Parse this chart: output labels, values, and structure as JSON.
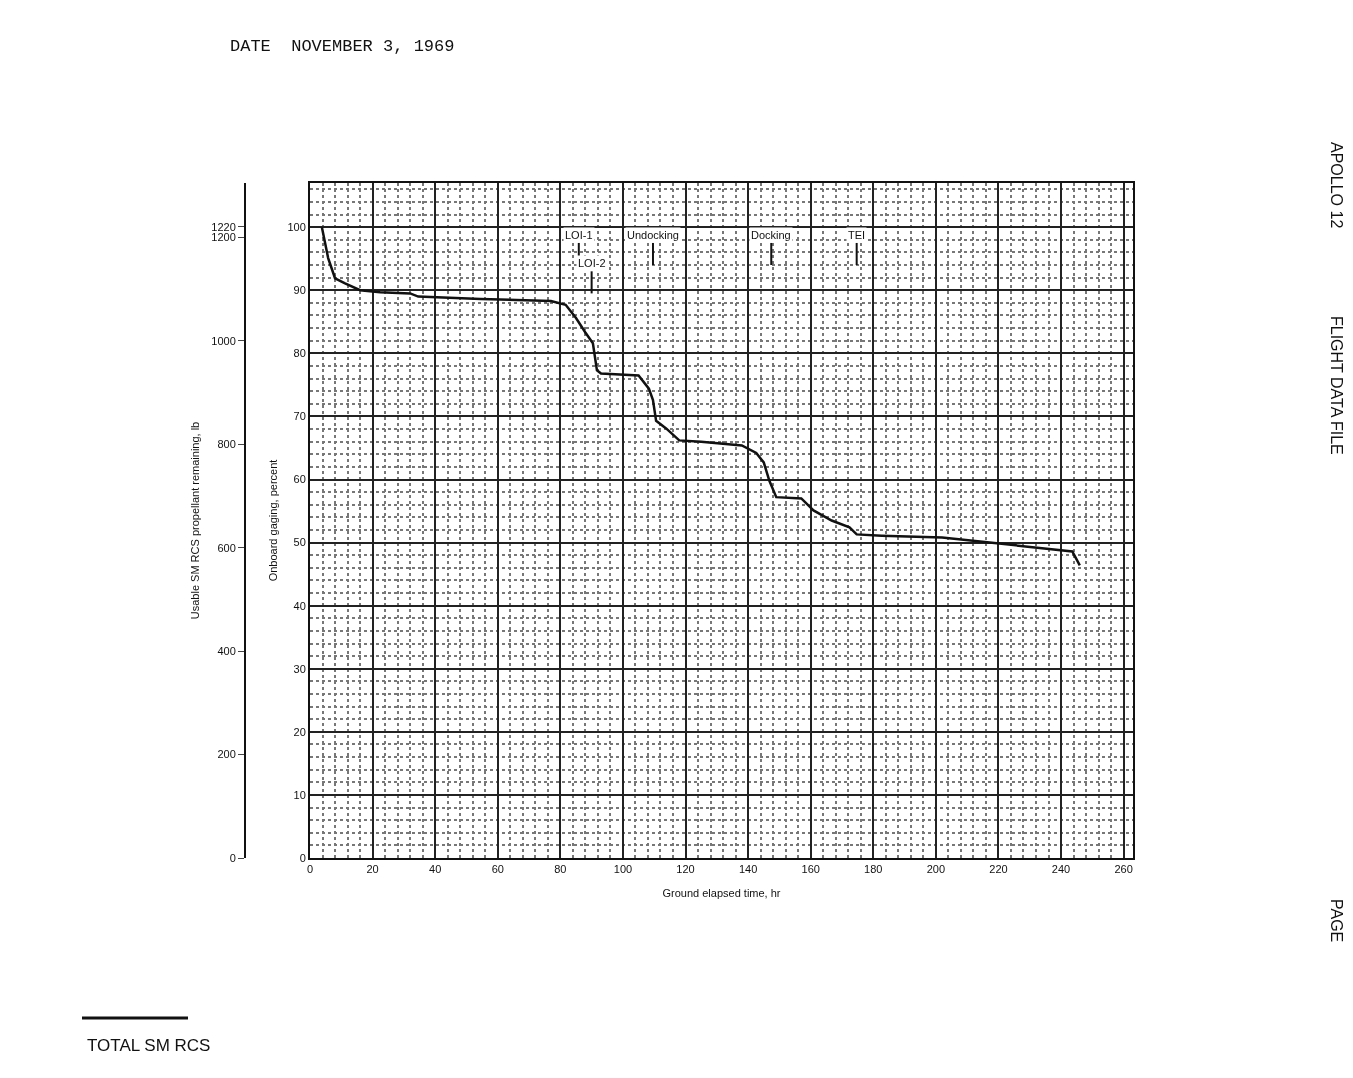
{
  "chart_data": {
    "type": "line",
    "title": "DATE  NOVEMBER 3, 1969",
    "xlabel": "Ground elapsed time, hr",
    "ylabel": "Onboard gaging, percent",
    "y2label": "Usable SM RCS propellant remaining, lb",
    "xlim": [
      0,
      263
    ],
    "xticks": [
      0,
      20,
      40,
      60,
      80,
      100,
      120,
      140,
      160,
      180,
      200,
      220,
      240,
      260
    ],
    "ylim": [
      0,
      107
    ],
    "yticks": [
      0,
      10,
      20,
      30,
      40,
      50,
      60,
      70,
      80,
      90,
      100
    ],
    "y2lim": [
      0,
      1305
    ],
    "y2ticks": [
      0,
      200,
      400,
      600,
      800,
      1000,
      1200,
      1220
    ],
    "grid": true,
    "marker": "none",
    "line_style": "solid",
    "series": [
      {
        "color": "#111111",
        "x": [
          3.8,
          5.8,
          8,
          11.2,
          16,
          22.4,
          32,
          34.6,
          54.5,
          77,
          81.7,
          85,
          88,
          90.4,
          91.7,
          93,
          105,
          108.3,
          109.6,
          110.6,
          113.8,
          118,
          125,
          138,
          142.6,
          145,
          146.8,
          149,
          157,
          160.9,
          166.7,
          172.4,
          174.7,
          182.7,
          202,
          221,
          243.6,
          246
        ],
        "values": [
          100,
          95.1,
          91.9,
          91.1,
          90,
          89.7,
          89.5,
          89,
          88.6,
          88.3,
          87.7,
          85.6,
          83.3,
          81.6,
          77.3,
          76.8,
          76.5,
          74.4,
          72.6,
          69.3,
          68.1,
          66.2,
          66,
          65.4,
          64.2,
          62.7,
          59.8,
          57.2,
          57,
          55.1,
          53.5,
          52.4,
          51.3,
          51.1,
          50.8,
          49.8,
          48.6,
          46.4
        ]
      }
    ],
    "annotations": [
      "APOLLO 12",
      "FLIGHT DATA FILE",
      "PAGE",
      "TOTAL SM RCS"
    ],
    "ref_lines": [
      {
        "axis": "x",
        "value": 85.9,
        "label": "LOI-1"
      },
      {
        "axis": "x",
        "value": 90,
        "label": "LOI-2"
      },
      {
        "axis": "x",
        "value": 109.6,
        "label": "Undocking"
      },
      {
        "axis": "x",
        "value": 147.4,
        "label": "Docking"
      },
      {
        "axis": "x",
        "value": 174.7,
        "label": "TEI"
      }
    ]
  }
}
